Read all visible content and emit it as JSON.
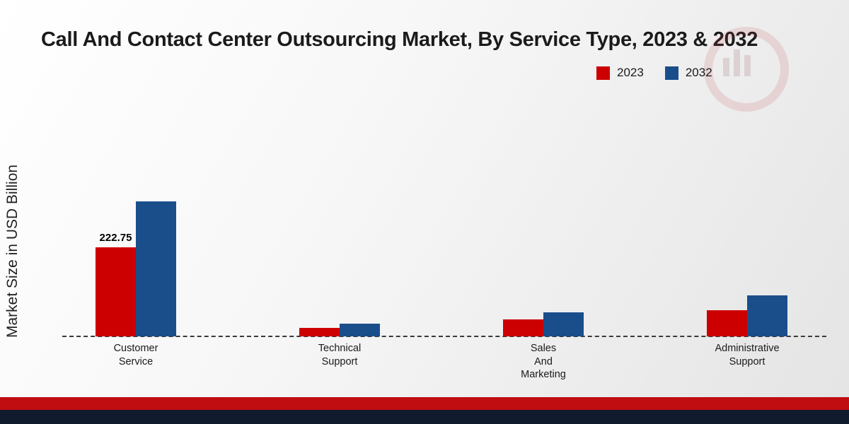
{
  "title": "Call And Contact Center Outsourcing Market, By Service Type, 2023 & 2032",
  "ylabel": "Market Size in USD Billion",
  "chart_data": {
    "type": "bar",
    "title": "Call And Contact Center Outsourcing Market, By Service Type, 2023 & 2032",
    "xlabel": "",
    "ylabel": "Market Size in USD Billion",
    "categories": [
      "Customer\nService",
      "Technical\nSupport",
      "Sales\nAnd\nMarketing",
      "Administrative\nSupport"
    ],
    "series": [
      {
        "name": "2023",
        "color": "#cc0000",
        "values": [
          222.75,
          22,
          42,
          66
        ]
      },
      {
        "name": "2032",
        "color": "#1a4e8b",
        "values": [
          338,
          31,
          60,
          102
        ]
      }
    ],
    "annotations": [
      {
        "series_index": 0,
        "category_index": 0,
        "text": "222.75"
      }
    ],
    "ylim": [
      0,
      400
    ],
    "grid": false,
    "legend_position": "top-right",
    "baseline_style": "dashed"
  }
}
